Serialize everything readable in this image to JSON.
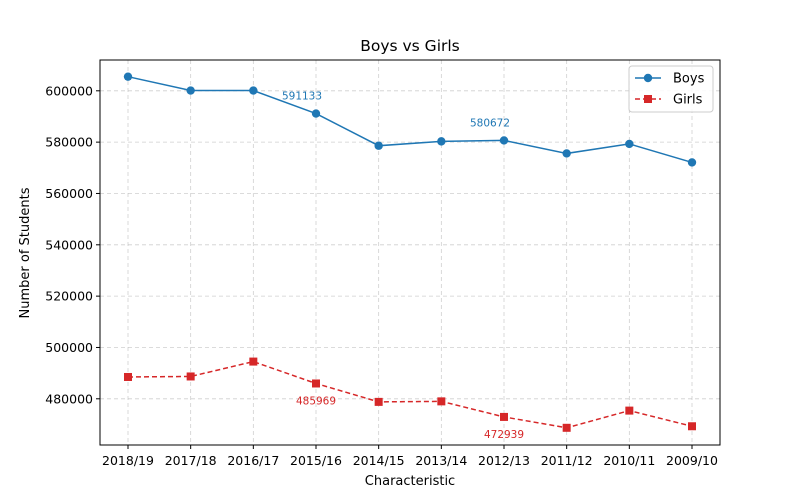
{
  "chart_data": {
    "type": "line",
    "title": "Boys vs Girls",
    "xlabel": "Characteristic",
    "ylabel": "Number of Students",
    "categories": [
      "2018/19",
      "2017/18",
      "2016/17",
      "2015/16",
      "2014/15",
      "2013/14",
      "2012/13",
      "2011/12",
      "2010/11",
      "2009/10"
    ],
    "ylim": [
      462000,
      612000
    ],
    "yticks": [
      480000,
      500000,
      520000,
      540000,
      560000,
      580000,
      600000
    ],
    "grid": true,
    "legend_position": "top-right",
    "series": [
      {
        "name": "Boys",
        "color": "#1f77b4",
        "marker": "circle",
        "line_style": "solid",
        "values": [
          605500,
          600100,
          600100,
          591133,
          578600,
          580300,
          580672,
          575600,
          579300,
          572100
        ]
      },
      {
        "name": "Girls",
        "color": "#d62728",
        "marker": "square",
        "line_style": "dashed",
        "values": [
          488500,
          488700,
          494500,
          485969,
          478800,
          479000,
          472939,
          468700,
          475400,
          469300
        ]
      }
    ],
    "annotations": [
      {
        "text": "591133",
        "series": 0,
        "index": 3,
        "position": "above-left"
      },
      {
        "text": "580672",
        "series": 0,
        "index": 6,
        "position": "above-left"
      },
      {
        "text": "485969",
        "series": 1,
        "index": 3,
        "position": "below"
      },
      {
        "text": "472939",
        "series": 1,
        "index": 6,
        "position": "below"
      }
    ]
  }
}
